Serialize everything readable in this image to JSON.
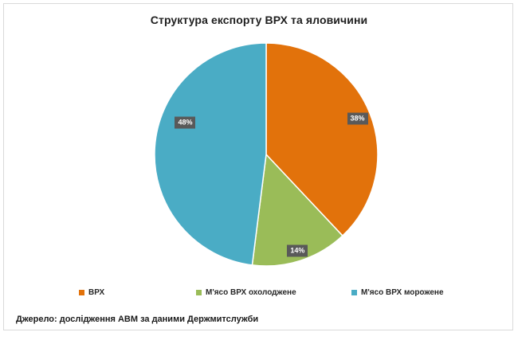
{
  "chart": {
    "title": "Структура експорту ВРХ та яловичини",
    "source_note": "Джерело: дослідження АВМ за даними Держмитслужби"
  },
  "chart_data": {
    "type": "pie",
    "title": "Структура експорту ВРХ та яловичини",
    "categories": [
      "ВРХ",
      "М'ясо ВРХ охолоджене",
      "М'ясо ВРХ морожене"
    ],
    "values": [
      38,
      14,
      48
    ],
    "unit": "%",
    "data_labels": [
      "38%",
      "14%",
      "48%"
    ],
    "colors": [
      "#e2720b",
      "#9abc58",
      "#4aacc5"
    ],
    "start_angle_deg": 0,
    "direction": "clockwise",
    "slice_border_color": "#ffffff",
    "data_label_bg": "#595959",
    "data_label_text_color": "#ffffff",
    "legend_position": "bottom",
    "legend": [
      "ВРХ",
      "М'ясо ВРХ охолоджене",
      "М'ясо ВРХ морожене"
    ]
  },
  "legend": {
    "items": [
      {
        "label": "ВРХ",
        "color": "#e2720b"
      },
      {
        "label": "М'ясо ВРХ охолоджене",
        "color": "#9abc58"
      },
      {
        "label": "М'ясо ВРХ морожене",
        "color": "#4aacc5"
      }
    ]
  }
}
